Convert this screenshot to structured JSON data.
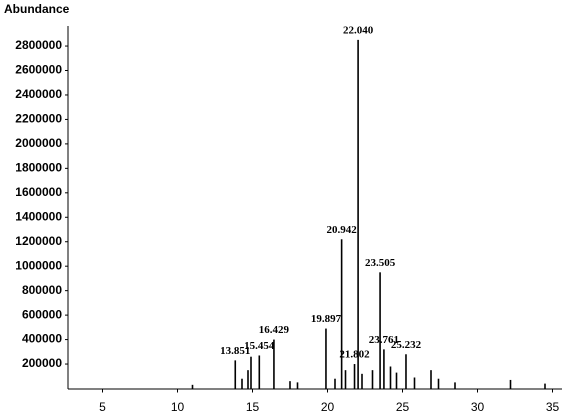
{
  "chart_data": {
    "type": "stick",
    "ylabel": "Abundance",
    "x": [
      11.0,
      13.851,
      14.3,
      14.7,
      14.9,
      15.454,
      16.429,
      17.5,
      18.0,
      19.897,
      20.5,
      20.942,
      21.2,
      21.802,
      22.04,
      22.3,
      23.0,
      23.505,
      23.761,
      24.2,
      24.6,
      25.232,
      25.8,
      26.9,
      27.4,
      28.5,
      32.2,
      34.5
    ],
    "values": [
      30000,
      230000,
      80000,
      150000,
      260000,
      270000,
      400000,
      60000,
      50000,
      490000,
      80000,
      1220000,
      150000,
      200000,
      2850000,
      120000,
      150000,
      950000,
      320000,
      180000,
      130000,
      280000,
      90000,
      150000,
      80000,
      50000,
      70000,
      40000
    ],
    "color": "#000000",
    "annotations": [
      {
        "x": 13.851,
        "y": 230000,
        "text": "13.851"
      },
      {
        "x": 15.454,
        "y": 270000,
        "text": "15.454"
      },
      {
        "x": 16.429,
        "y": 400000,
        "text": "16.429"
      },
      {
        "x": 19.897,
        "y": 490000,
        "text": "19.897"
      },
      {
        "x": 20.942,
        "y": 1220000,
        "text": "20.942"
      },
      {
        "x": 21.802,
        "y": 200000,
        "text": "21.802"
      },
      {
        "x": 22.04,
        "y": 2850000,
        "text": "22.040"
      },
      {
        "x": 23.505,
        "y": 950000,
        "text": "23.505"
      },
      {
        "x": 23.761,
        "y": 320000,
        "text": "23.761"
      },
      {
        "x": 25.232,
        "y": 280000,
        "text": "25.232"
      }
    ],
    "xlim": [
      2.7,
      35.5
    ],
    "xticks": [
      5,
      10,
      15,
      20,
      25,
      30,
      35
    ],
    "ylim": [
      0,
      2950000
    ],
    "yticks": [
      200000,
      400000,
      600000,
      800000,
      1000000,
      1200000,
      1400000,
      1600000,
      1800000,
      2000000,
      2200000,
      2400000,
      2600000,
      2800000
    ]
  }
}
